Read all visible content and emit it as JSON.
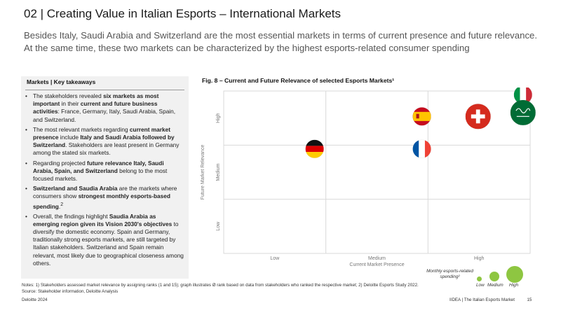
{
  "header": {
    "title": "02 | Creating Value in Italian Esports – International Markets",
    "subtitle": "Besides Italy, Saudi Arabia and Switzerland are the most essential markets in terms of current presence and future relevance. At the same time, these two markets can be characterized by the highest esports-related consumer spending"
  },
  "takeaways": {
    "heading": "Markets | Key takeaways",
    "bullets": [
      "The stakeholders revealed <b>six markets as most important</b> in their <b>current and future business activities</b>: France, Germany, Italy, Saudi Arabia, Spain, and Switzerland.",
      "The most relevant markets regarding <b>current market presence</b> include <b>Italy and Saudi Arabia followed by Switzerland</b>. Stakeholders are least present in Germany among the stated six markets.",
      "Regarding projected <b>future relevance Italy, Saudi Arabia, Spain, and Switzerland</b> belong to the most focused markets.",
      "<b>Switzerland and Saudia Arabia</b> are the markets where consumers show <b>strongest monthly esports-based spending</b>.<sup>2</sup>",
      "Overall, the findings highlight <b>Saudia Arabia as emerging region given its Vision 2030's objectives</b> to diversify the domestic economy. Spain and Germany, traditionally strong esports markets, are still targeted by Italian stakeholders. Switzerland and Spain remain relevant, most likely due to geographical closeness among others."
    ]
  },
  "figure": {
    "title": "Fig. 8 – Current and Future Relevance of selected Esports Markets¹"
  },
  "chart_data": {
    "type": "scatter",
    "xlabel": "Current Market Presence",
    "ylabel": "Future Market Relevance",
    "x_categories": [
      "Low",
      "Medium",
      "High"
    ],
    "y_categories": [
      "Low",
      "Medium",
      "High"
    ],
    "xlim": [
      0,
      3
    ],
    "ylim": [
      0,
      3
    ],
    "grid": true,
    "size_legend": {
      "title": "Monthly esports-related spending²",
      "labels": [
        "Low",
        "Medium",
        "High"
      ]
    },
    "points": [
      {
        "flag": "germany-flag",
        "x": 0.89,
        "y": 1.93,
        "spending": "medium"
      },
      {
        "flag": "france-flag",
        "x": 1.94,
        "y": 1.93,
        "spending": "low"
      },
      {
        "flag": "spain-flag",
        "x": 1.94,
        "y": 2.53,
        "spending": "medium"
      },
      {
        "flag": "switzerland-flag",
        "x": 2.49,
        "y": 2.53,
        "spending": "high"
      },
      {
        "flag": "italy-flag",
        "x": 2.93,
        "y": 2.93,
        "spending": "medium"
      },
      {
        "flag": "saudi-arabia-flag",
        "x": 2.93,
        "y": 2.6,
        "spending": "high"
      }
    ]
  },
  "notes": {
    "line1": "Notes: 1) Stakeholders assessed market relevance by assigning ranks (1 and 15); graph illustrates Ø rank based on data from stakeholders who ranked the respective market; 2) Deloitte Esports Study 2022.",
    "line2": "Source: Stakeholder information, Deloitte Analysis"
  },
  "footer": {
    "left": "Deloitte 2024",
    "right": "IIDEA | The Italian Esports Market",
    "page": "15"
  },
  "colors": {
    "grid": "#d9d9d9",
    "axis_text": "#777777",
    "legend_bubble": "#8ec641",
    "panel_bg": "#f1f1f1"
  }
}
